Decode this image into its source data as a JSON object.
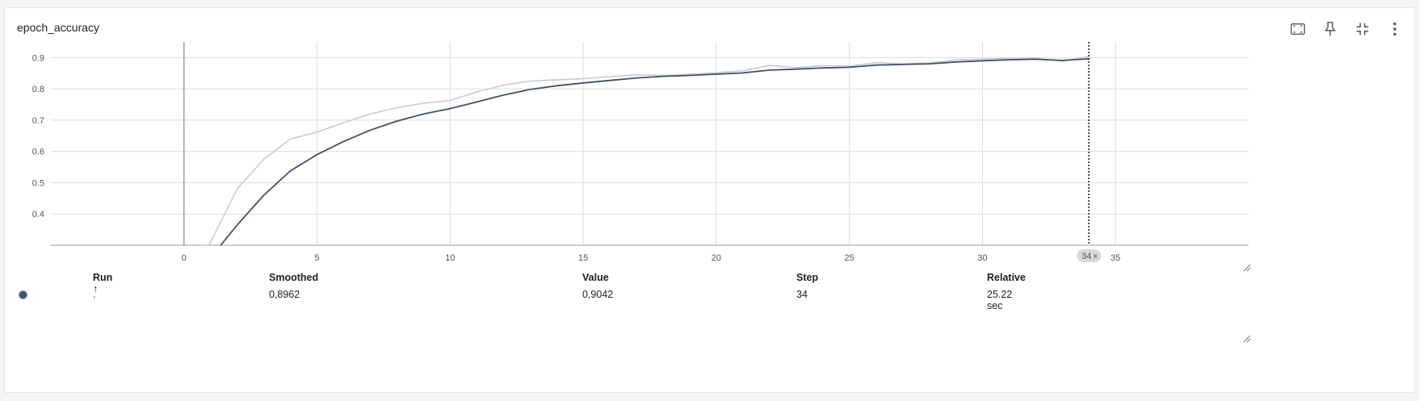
{
  "card": {
    "title": "epoch_accuracy"
  },
  "toolbar": [
    {
      "name": "fit-domain-icon",
      "label": "Fit domain to data"
    },
    {
      "name": "pin-icon",
      "label": "Pin card"
    },
    {
      "name": "collapse-icon",
      "label": "Toggle full size"
    },
    {
      "name": "more-vert-icon",
      "label": "More options"
    }
  ],
  "colors": {
    "smoothed": "#425066",
    "raw": "#c7cbd9",
    "grid": "#dcdcdc",
    "zero_line": "#9e9e9e"
  },
  "chart_data": {
    "type": "line",
    "title": "epoch_accuracy",
    "xlim": [
      -5,
      40
    ],
    "ylim": [
      0.3,
      0.95
    ],
    "xticks": [
      0,
      5,
      10,
      15,
      20,
      25,
      30,
      35
    ],
    "yticks": [
      0.4,
      0.5,
      0.6,
      0.7,
      0.8,
      0.9
    ],
    "ytick_labels": [
      "0.4",
      "0.5",
      "0.6",
      "0.7",
      "0.8",
      "0.9"
    ],
    "grid": true,
    "series": [
      {
        "role": "raw",
        "x": [
          0,
          1,
          2,
          3,
          4,
          5,
          6,
          7,
          8,
          9,
          10,
          11,
          12,
          13,
          14,
          15,
          16,
          17,
          18,
          19,
          20,
          21,
          22,
          23,
          24,
          25,
          26,
          27,
          28,
          29,
          30,
          31,
          32,
          33,
          34
        ],
        "values": [
          0.17,
          0.31,
          0.48,
          0.575,
          0.64,
          0.662,
          0.692,
          0.72,
          0.74,
          0.754,
          0.763,
          0.79,
          0.812,
          0.825,
          0.829,
          0.833,
          0.839,
          0.845,
          0.843,
          0.847,
          0.852,
          0.858,
          0.875,
          0.868,
          0.874,
          0.873,
          0.884,
          0.88,
          0.883,
          0.893,
          0.895,
          0.897,
          0.897,
          0.888,
          0.904
        ]
      },
      {
        "role": "smoothed",
        "x": [
          0,
          1,
          2,
          3,
          4,
          5,
          6,
          7,
          8,
          9,
          10,
          11,
          12,
          13,
          14,
          15,
          16,
          17,
          18,
          19,
          20,
          21,
          22,
          23,
          24,
          25,
          26,
          27,
          28,
          29,
          30,
          31,
          32,
          33,
          34
        ],
        "values": [
          0.17,
          0.26,
          0.365,
          0.46,
          0.538,
          0.59,
          0.632,
          0.668,
          0.697,
          0.72,
          0.737,
          0.758,
          0.78,
          0.798,
          0.81,
          0.819,
          0.827,
          0.835,
          0.84,
          0.843,
          0.847,
          0.851,
          0.86,
          0.863,
          0.867,
          0.869,
          0.876,
          0.878,
          0.88,
          0.886,
          0.89,
          0.893,
          0.895,
          0.891,
          0.8962
        ]
      }
    ],
    "hover_step": 34,
    "hover_label": "34"
  },
  "table": {
    "headers": {
      "run": "Run",
      "smoothed": "Smoothed",
      "value": "Value",
      "step": "Step",
      "relative": "Relative"
    },
    "sort_indicator": "↑",
    "rows": [
      {
        "run": ".",
        "smoothed": "0,8962",
        "value": "0,9042",
        "step": "34",
        "relative": "25.22 sec"
      }
    ]
  }
}
